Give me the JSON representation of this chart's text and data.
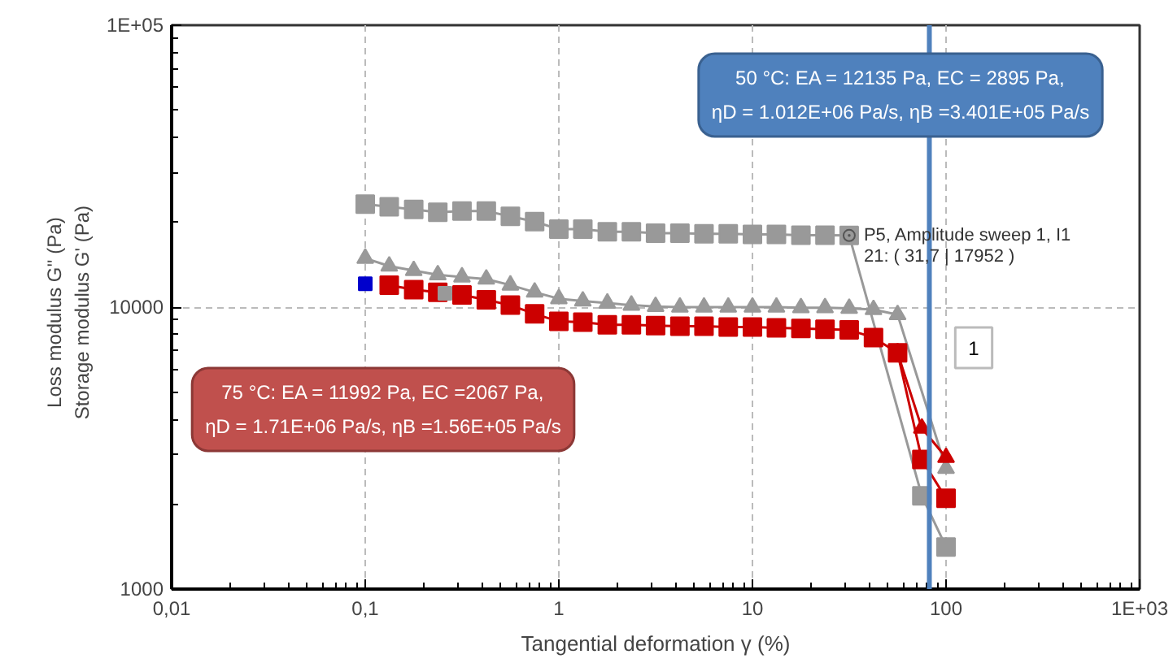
{
  "chart_data": {
    "type": "line",
    "xlabel": "Tangential deformation γ (%)",
    "ylabel": "Loss modulus G''   (Pa)\nStorage modulus G'   (Pa)",
    "log": "xy",
    "grid": true,
    "xlim": [
      0.01,
      1000
    ],
    "xticks": [
      {
        "value": 0.01,
        "label": "0,01"
      },
      {
        "value": 0.1,
        "label": "0,1"
      },
      1,
      10,
      100,
      {
        "value": 1000,
        "label": "1E+03"
      }
    ],
    "ylim": [
      1000,
      100000
    ],
    "yticks": [
      1000,
      10000,
      {
        "value": 100000,
        "label": "1E+05"
      }
    ],
    "series": [
      {
        "color": "#999999",
        "marker": "square",
        "x": [
          0.1,
          0.133,
          0.178,
          0.237,
          0.316,
          0.422,
          0.562,
          0.75,
          1,
          1.33,
          1.78,
          2.37,
          3.16,
          4.22,
          5.62,
          7.5,
          10,
          13.3,
          17.8,
          23.7,
          31.6,
          75,
          100
        ],
        "values": [
          23200,
          22700,
          22200,
          21700,
          21900,
          21900,
          21000,
          20100,
          18900,
          18900,
          18500,
          18500,
          18300,
          18300,
          18200,
          18200,
          18100,
          18100,
          18000,
          18000,
          17952,
          2140,
          1410
        ]
      },
      {
        "color": "#999999",
        "marker": "triangle",
        "x": [
          0.1,
          0.133,
          0.178,
          0.237,
          0.316,
          0.422,
          0.562,
          0.75,
          1,
          1.33,
          1.78,
          2.37,
          3.16,
          4.22,
          5.62,
          7.5,
          10,
          13.3,
          17.8,
          23.7,
          31.6,
          42.2,
          56.2,
          100
        ],
        "values": [
          14900,
          13980,
          13480,
          13010,
          12790,
          12570,
          11970,
          11300,
          10710,
          10510,
          10330,
          10160,
          10050,
          10000,
          10000,
          10000,
          10000,
          10000,
          9950,
          9950,
          9900,
          9800,
          9400,
          2680
        ]
      },
      {
        "color": "#cc0000",
        "marker": "square",
        "x": [
          0.133,
          0.178,
          0.237,
          0.316,
          0.422,
          0.562,
          0.75,
          1,
          1.33,
          1.78,
          2.37,
          3.16,
          4.22,
          5.62,
          7.5,
          10,
          13.3,
          17.8,
          23.7,
          31.6,
          42.2,
          56.2,
          75,
          100
        ],
        "values": [
          11970,
          11540,
          11290,
          11040,
          10610,
          10160,
          9460,
          8900,
          8850,
          8660,
          8660,
          8600,
          8550,
          8550,
          8500,
          8500,
          8450,
          8400,
          8350,
          8300,
          7800,
          6880,
          2880,
          2100
        ]
      },
      {
        "color": "#cc0000",
        "marker": "triangle",
        "x": [
          56.2,
          75,
          100
        ],
        "values": [
          6880,
          3720,
          2930
        ]
      },
      {
        "color": "#0000cc",
        "marker": "square",
        "type": "scatter",
        "x": [
          0.1
        ],
        "values": [
          12100
        ]
      },
      {
        "color": "#999999",
        "marker": "square",
        "type": "scatter",
        "x": [
          0.258
        ],
        "values": [
          11200
        ]
      }
    ],
    "ref_lines": [
      {
        "axis": "x",
        "value": 82,
        "color": "#4f81bd"
      }
    ],
    "annotations": [
      "50 °C: EA = 12135 Pa, EC = 2895 Pa,\nηD = 1.012E+06 Pa/s, ηB =3.401E+05 Pa/s",
      "75 °C: EA = 11992 Pa, EC =2067 Pa,\nηD = 1.71E+06 Pa/s, ηB =1.56E+05 Pa/s",
      {
        "text": "P5, Amplitude sweep 1, I1\n21:  ( 31,7 | 17952 )",
        "x": 31.6,
        "y": 17952
      },
      "1"
    ]
  }
}
